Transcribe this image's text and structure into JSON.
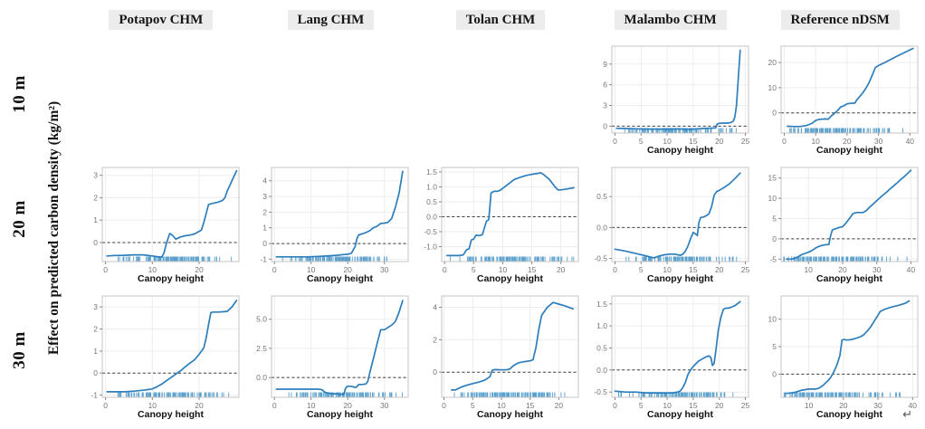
{
  "layout_labels": {
    "col_headers": [
      "Potapov CHM",
      "Lang CHM",
      "Tolan CHM",
      "Malambo CHM",
      "Reference nDSM"
    ],
    "row_headers": [
      "10 m",
      "20 m",
      "30 m"
    ],
    "y_axis_label": "Effect on predicted carbon density (kg/m²)",
    "x_axis_label": "Canopy height",
    "return_mark": "↵"
  },
  "colors": {
    "line": "#2e7ebc",
    "rug": "#3d8fc4",
    "zero_line": "#3f3f3f",
    "panel_border": "#c6c6c6",
    "grid": "#ededed",
    "header_bg": "#ececec",
    "tick_text": "#767676",
    "tick_mark": "#8a8a8a",
    "axis_title": "#111111"
  },
  "chart_data": [
    {
      "type": "line",
      "resolution": "10 m",
      "source": "Malambo CHM",
      "xlabel": "Canopy height",
      "xlim": [
        -0.6,
        25.6
      ],
      "ylim": [
        -1.0,
        11.6
      ],
      "xticks": [
        0,
        5,
        10,
        15,
        20,
        25
      ],
      "yticks": [
        0,
        3,
        6,
        9
      ],
      "xtick_labels": [
        "0",
        "5",
        "10",
        "15",
        "20",
        "25"
      ],
      "ytick_labels": [
        "0",
        "3",
        "6",
        "9"
      ],
      "zero_line": true,
      "x": [
        0.3,
        2,
        4,
        6,
        8,
        10,
        12,
        13,
        14,
        15,
        16,
        17,
        18,
        18.7,
        19.3,
        19.6,
        20,
        21,
        21.7,
        22.3,
        22.7,
        23,
        23.3,
        23.6,
        24
      ],
      "y": [
        -0.32,
        -0.35,
        -0.38,
        -0.42,
        -0.43,
        -0.42,
        -0.4,
        -0.42,
        -0.45,
        -0.42,
        -0.38,
        -0.33,
        -0.3,
        -0.28,
        -0.25,
        0.3,
        0.42,
        0.45,
        0.45,
        0.55,
        0.75,
        1.4,
        3.0,
        6.5,
        11.0
      ],
      "rug": {
        "min": 0.5,
        "max": 24.5,
        "n": 110,
        "seed": 7,
        "skew": 1
      }
    },
    {
      "type": "line",
      "resolution": "10 m",
      "source": "Reference nDSM",
      "xlabel": "Canopy height",
      "xlim": [
        -1,
        42.5
      ],
      "ylim": [
        -8.0,
        26.5
      ],
      "xticks": [
        0,
        10,
        20,
        30,
        40
      ],
      "yticks": [
        0,
        10,
        20
      ],
      "xtick_labels": [
        "0",
        "10",
        "20",
        "30",
        "40"
      ],
      "ytick_labels": [
        "0",
        "10",
        "20"
      ],
      "zero_line": true,
      "x": [
        1,
        3,
        5,
        7,
        8,
        9,
        10,
        11,
        12,
        13,
        14,
        15,
        16,
        17,
        18,
        19,
        20,
        21,
        22.5,
        23,
        24,
        25,
        26,
        27,
        28,
        29,
        30,
        32,
        34,
        36,
        38,
        41
      ],
      "y": [
        -5.3,
        -5.4,
        -5.4,
        -5.0,
        -4.6,
        -4.0,
        -3.0,
        -2.6,
        -2.5,
        -2.4,
        -2.5,
        -1.2,
        -0.2,
        1.0,
        2.4,
        2.8,
        3.6,
        3.8,
        3.9,
        5.0,
        6.5,
        8.0,
        9.8,
        12.0,
        15.0,
        18.0,
        18.8,
        20.0,
        21.3,
        22.6,
        23.8,
        25.6
      ],
      "rug": {
        "min": 0.8,
        "max": 41,
        "n": 130,
        "seed": 11,
        "skew": 1.35
      }
    },
    {
      "type": "line",
      "resolution": "20 m",
      "source": "Potapov CHM",
      "xlabel": "Canopy height",
      "xlim": [
        -0.7,
        28.5
      ],
      "ylim": [
        -0.85,
        3.35
      ],
      "xticks": [
        0,
        10,
        20
      ],
      "yticks": [
        0,
        1,
        2,
        3
      ],
      "xtick_labels": [
        "0",
        "10",
        "20"
      ],
      "ytick_labels": [
        "0",
        "1",
        "2",
        "3"
      ],
      "zero_line": true,
      "x": [
        0.3,
        2,
        4,
        6,
        8,
        10,
        11,
        12,
        12.5,
        13,
        13.7,
        14.3,
        15,
        16,
        17,
        18,
        19,
        20,
        20.5,
        21,
        21.5,
        22,
        23,
        24,
        25,
        25.5,
        26,
        27,
        28
      ],
      "y": [
        -0.6,
        -0.58,
        -0.57,
        -0.55,
        -0.55,
        -0.6,
        -0.63,
        -0.65,
        -0.45,
        -0.05,
        0.4,
        0.32,
        0.15,
        0.25,
        0.3,
        0.33,
        0.38,
        0.5,
        0.55,
        0.9,
        1.3,
        1.7,
        1.75,
        1.8,
        1.88,
        2.0,
        2.3,
        2.75,
        3.2
      ],
      "rug": {
        "min": 0.3,
        "max": 27.6,
        "n": 120,
        "seed": 13,
        "skew": 1
      }
    },
    {
      "type": "line",
      "resolution": "20 m",
      "source": "Lang CHM",
      "xlabel": "Canopy height",
      "xlim": [
        -0.8,
        36.5
      ],
      "ylim": [
        -1.15,
        4.85
      ],
      "xticks": [
        0,
        10,
        20,
        30
      ],
      "yticks": [
        -1,
        0,
        1,
        2,
        3,
        4
      ],
      "xtick_labels": [
        "0",
        "10",
        "20",
        "30"
      ],
      "ytick_labels": [
        "-1",
        "0",
        "1",
        "2",
        "3",
        "4"
      ],
      "zero_line": true,
      "x": [
        0.5,
        3,
        6,
        9,
        12,
        15,
        17,
        19,
        20,
        21,
        21.5,
        22,
        22.5,
        23,
        24,
        25,
        26,
        27,
        28,
        29,
        30,
        31,
        32,
        33,
        34,
        35
      ],
      "y": [
        -0.85,
        -0.85,
        -0.85,
        -0.85,
        -0.82,
        -0.78,
        -0.75,
        -0.7,
        -0.68,
        -0.62,
        -0.4,
        -0.2,
        0.3,
        0.55,
        0.62,
        0.7,
        0.82,
        1.0,
        1.1,
        1.28,
        1.3,
        1.35,
        1.6,
        2.3,
        3.2,
        4.6
      ],
      "rug": {
        "min": 0.5,
        "max": 35.6,
        "n": 115,
        "seed": 17,
        "skew": 1
      }
    },
    {
      "type": "line",
      "resolution": "20 m",
      "source": "Tolan CHM",
      "xlabel": "Canopy height",
      "xlim": [
        -0.5,
        23
      ],
      "ylim": [
        -1.5,
        1.65
      ],
      "xticks": [
        0,
        5,
        10,
        15,
        20
      ],
      "yticks": [
        -1.0,
        -0.5,
        0.0,
        0.5,
        1.0,
        1.5
      ],
      "xtick_labels": [
        "0",
        "5",
        "10",
        "15",
        "20"
      ],
      "ytick_labels": [
        "-1.0",
        "-0.5",
        "0.0",
        "0.5",
        "1.0",
        "1.5"
      ],
      "zero_line": true,
      "x": [
        0.4,
        1.5,
        2.5,
        3.2,
        3.8,
        4.2,
        4.6,
        5.0,
        5.4,
        6.0,
        6.5,
        6.8,
        7.2,
        7.6,
        8.0,
        8.5,
        9.0,
        9.5,
        10,
        11,
        12,
        13,
        14,
        15,
        16,
        16.5,
        17,
        18,
        19,
        19.5,
        20,
        21,
        22.2
      ],
      "y": [
        -1.3,
        -1.3,
        -1.3,
        -1.28,
        -1.1,
        -1.08,
        -0.78,
        -0.75,
        -0.62,
        -0.63,
        -0.6,
        -0.4,
        -0.15,
        -0.1,
        0.8,
        0.85,
        0.85,
        0.88,
        0.95,
        1.1,
        1.25,
        1.32,
        1.38,
        1.42,
        1.45,
        1.47,
        1.42,
        1.25,
        1.0,
        0.9,
        0.9,
        0.93,
        0.97
      ],
      "rug": {
        "min": 0.3,
        "max": 22.4,
        "n": 120,
        "seed": 19,
        "skew": 1
      }
    },
    {
      "type": "line",
      "resolution": "20 m",
      "source": "Malambo CHM",
      "xlabel": "Canopy height",
      "xlim": [
        -0.6,
        25.6
      ],
      "ylim": [
        -0.55,
        0.97
      ],
      "xticks": [
        0,
        5,
        10,
        15,
        20,
        25
      ],
      "yticks": [
        -0.5,
        0.0,
        0.5
      ],
      "xtick_labels": [
        "0",
        "5",
        "10",
        "15",
        "20",
        "25"
      ],
      "ytick_labels": [
        "-0.5",
        "0.0",
        "0.5"
      ],
      "zero_line": true,
      "x": [
        0,
        2,
        4,
        6,
        7.5,
        8.5,
        9.5,
        10.5,
        11.5,
        12.5,
        13,
        13.5,
        14,
        14.5,
        15,
        15.4,
        15.8,
        16.1,
        16.4,
        17,
        17.5,
        18,
        18.5,
        19,
        19.5,
        20,
        21,
        22,
        23,
        24
      ],
      "y": [
        -0.35,
        -0.38,
        -0.42,
        -0.46,
        -0.49,
        -0.46,
        -0.44,
        -0.43,
        -0.43,
        -0.45,
        -0.43,
        -0.38,
        -0.3,
        -0.18,
        -0.08,
        -0.1,
        -0.13,
        0.08,
        0.16,
        0.17,
        0.19,
        0.22,
        0.33,
        0.52,
        0.58,
        0.6,
        0.65,
        0.71,
        0.79,
        0.88
      ],
      "rug": {
        "min": 0.3,
        "max": 24.6,
        "n": 115,
        "seed": 23,
        "skew": 1
      }
    },
    {
      "type": "line",
      "resolution": "20 m",
      "source": "Reference nDSM",
      "xlabel": "Canopy height",
      "xlim": [
        2,
        42
      ],
      "ylim": [
        -5.6,
        17.6
      ],
      "xticks": [
        10,
        20,
        30,
        40
      ],
      "yticks": [
        -5,
        0,
        5,
        10,
        15
      ],
      "xtick_labels": [
        "10",
        "20",
        "30",
        "40"
      ],
      "ytick_labels": [
        "-5",
        "0",
        "5",
        "10",
        "15"
      ],
      "zero_line": true,
      "x": [
        3.5,
        5,
        6,
        7,
        8,
        9,
        10,
        11,
        12,
        13,
        14,
        15,
        16,
        16.4,
        17,
        18,
        19,
        20,
        21,
        22,
        23,
        24,
        25,
        26,
        27,
        28,
        29,
        30,
        31,
        32,
        33,
        34,
        35,
        36,
        37,
        38,
        39,
        40
      ],
      "y": [
        -5.0,
        -5.0,
        -4.8,
        -4.4,
        -3.9,
        -3.6,
        -3.3,
        -2.9,
        -2.3,
        -1.9,
        -1.6,
        -1.45,
        -1.4,
        0.5,
        2.2,
        2.5,
        2.8,
        3.0,
        3.9,
        5.0,
        6.2,
        6.5,
        6.5,
        6.5,
        7.0,
        7.9,
        8.6,
        9.4,
        10.2,
        10.9,
        11.6,
        12.4,
        13.1,
        13.8,
        14.6,
        15.3,
        16.1,
        16.9
      ],
      "rug": {
        "min": 2.5,
        "max": 40,
        "n": 125,
        "seed": 29,
        "skew": 1.35
      }
    },
    {
      "type": "line",
      "resolution": "30 m",
      "source": "Potapov CHM",
      "xlabel": "Canopy height",
      "xlim": [
        -0.7,
        28.5
      ],
      "ylim": [
        -1.1,
        3.5
      ],
      "xticks": [
        0,
        10,
        20
      ],
      "yticks": [
        -1,
        0,
        1,
        2,
        3
      ],
      "xtick_labels": [
        "0",
        "10",
        "20"
      ],
      "ytick_labels": [
        "-1",
        "0",
        "1",
        "2",
        "3"
      ],
      "zero_line": true,
      "x": [
        0.3,
        2,
        4,
        6,
        8,
        9,
        10,
        11,
        12,
        13,
        14,
        15,
        15.5,
        16,
        17,
        18,
        19,
        20,
        20.5,
        21,
        21.5,
        22,
        22.5,
        23,
        24,
        25,
        26,
        27,
        28
      ],
      "y": [
        -0.85,
        -0.85,
        -0.85,
        -0.82,
        -0.78,
        -0.75,
        -0.72,
        -0.62,
        -0.5,
        -0.35,
        -0.2,
        -0.05,
        0.03,
        0.1,
        0.28,
        0.45,
        0.6,
        0.85,
        1.0,
        1.15,
        1.6,
        2.2,
        2.75,
        2.77,
        2.77,
        2.78,
        2.8,
        3.0,
        3.3
      ],
      "rug": {
        "min": 0.3,
        "max": 27.6,
        "n": 120,
        "seed": 31,
        "skew": 1
      }
    },
    {
      "type": "line",
      "resolution": "30 m",
      "source": "Lang CHM",
      "xlabel": "Canopy height",
      "xlim": [
        -0.8,
        36.5
      ],
      "ylim": [
        -1.7,
        7.0
      ],
      "xticks": [
        0,
        10,
        20,
        30
      ],
      "yticks": [
        0,
        2.5,
        5
      ],
      "xtick_labels": [
        "0",
        "10",
        "20",
        "30"
      ],
      "ytick_labels": [
        "0.0",
        "2.5",
        "5.0"
      ],
      "zero_line": true,
      "x": [
        0.5,
        3,
        6,
        9,
        12,
        13,
        13.5,
        14,
        15,
        16,
        17,
        18,
        19,
        19.3,
        19.7,
        20,
        21,
        22,
        22.5,
        23,
        24,
        25,
        25.5,
        26,
        27,
        28,
        29,
        30,
        31,
        32,
        33,
        34,
        35
      ],
      "y": [
        -1.0,
        -1.0,
        -1.0,
        -1.0,
        -1.0,
        -1.05,
        -1.2,
        -1.3,
        -1.35,
        -1.4,
        -1.4,
        -1.45,
        -1.42,
        -1.0,
        -0.8,
        -0.75,
        -0.75,
        -0.85,
        -0.8,
        -0.6,
        -0.6,
        -0.55,
        -0.3,
        0.4,
        1.6,
        2.9,
        4.1,
        4.1,
        4.3,
        4.5,
        4.8,
        5.6,
        6.6
      ],
      "rug": {
        "min": 0.5,
        "max": 35.6,
        "n": 115,
        "seed": 37,
        "skew": 1
      }
    },
    {
      "type": "line",
      "resolution": "30 m",
      "source": "Tolan CHM",
      "xlabel": "Canopy height",
      "xlim": [
        -0.4,
        23.4
      ],
      "ylim": [
        -1.55,
        4.7
      ],
      "xticks": [
        0,
        5,
        10,
        15,
        20
      ],
      "yticks": [
        0,
        2,
        4
      ],
      "xtick_labels": [
        "0",
        "5",
        "10",
        "15",
        "20"
      ],
      "ytick_labels": [
        "0",
        "2",
        "4"
      ],
      "zero_line": true,
      "x": [
        1.3,
        2,
        3,
        4,
        5,
        6,
        6.5,
        7,
        7.5,
        8,
        8.4,
        8.8,
        9.5,
        10,
        11,
        11.5,
        12,
        13,
        14,
        15,
        15.5,
        16,
        16.5,
        17,
        18,
        19,
        20,
        21,
        22.5
      ],
      "y": [
        -1.1,
        -1.1,
        -0.92,
        -0.8,
        -0.7,
        -0.62,
        -0.56,
        -0.5,
        -0.4,
        -0.28,
        0.12,
        0.16,
        0.15,
        0.14,
        0.15,
        0.2,
        0.38,
        0.58,
        0.65,
        0.7,
        0.76,
        1.5,
        2.6,
        3.5,
        4.0,
        4.3,
        4.2,
        4.1,
        3.9
      ],
      "rug": {
        "min": 0.3,
        "max": 22.6,
        "n": 120,
        "seed": 41,
        "skew": 1
      }
    },
    {
      "type": "line",
      "resolution": "30 m",
      "source": "Malambo CHM",
      "xlabel": "Canopy height",
      "xlim": [
        -0.6,
        25.6
      ],
      "ylim": [
        -0.62,
        1.68
      ],
      "xticks": [
        0,
        5,
        10,
        15,
        20,
        25
      ],
      "yticks": [
        -0.5,
        0.0,
        0.5,
        1.0,
        1.5
      ],
      "xtick_labels": [
        "0",
        "5",
        "10",
        "15",
        "20",
        "25"
      ],
      "ytick_labels": [
        "-0.5",
        "0.0",
        "0.5",
        "1.0",
        "1.5"
      ],
      "zero_line": true,
      "x": [
        0,
        2,
        4,
        6,
        8,
        10,
        11,
        12,
        12.5,
        13,
        13.5,
        14,
        14.5,
        15,
        16,
        17,
        17.5,
        18,
        18.4,
        18.7,
        19,
        19.4,
        19.8,
        20.3,
        20.8,
        21.2,
        22,
        23,
        24
      ],
      "y": [
        -0.48,
        -0.5,
        -0.5,
        -0.52,
        -0.52,
        -0.52,
        -0.52,
        -0.5,
        -0.48,
        -0.4,
        -0.28,
        -0.1,
        0.0,
        0.08,
        0.2,
        0.27,
        0.3,
        0.32,
        0.28,
        0.1,
        0.15,
        0.5,
        0.9,
        1.2,
        1.38,
        1.4,
        1.41,
        1.46,
        1.55
      ],
      "rug": {
        "min": 0.3,
        "max": 24.6,
        "n": 115,
        "seed": 43,
        "skew": 1
      }
    },
    {
      "type": "line",
      "resolution": "30 m",
      "source": "Reference nDSM",
      "xlabel": "Canopy height",
      "xlim": [
        2,
        41.5
      ],
      "ylim": [
        -4.2,
        14.2
      ],
      "xticks": [
        10,
        20,
        30,
        40
      ],
      "yticks": [
        0,
        5,
        10
      ],
      "xtick_labels": [
        "10",
        "20",
        "30",
        "40"
      ],
      "ytick_labels": [
        "0",
        "5",
        "10"
      ],
      "zero_line": true,
      "x": [
        3.5,
        5,
        6,
        7,
        8,
        9,
        10,
        11,
        12,
        13,
        14,
        15,
        16,
        17,
        17.5,
        18,
        18.5,
        19,
        19.6,
        20.2,
        21,
        22,
        23,
        24,
        25,
        26,
        27,
        28,
        29,
        30,
        30.7,
        32,
        34,
        36,
        38,
        39
      ],
      "y": [
        -3.5,
        -3.4,
        -3.3,
        -3.1,
        -2.9,
        -2.8,
        -2.7,
        -2.7,
        -2.7,
        -2.5,
        -2.1,
        -1.5,
        -0.9,
        0.1,
        0.8,
        1.5,
        2.4,
        3.4,
        6.2,
        6.3,
        6.2,
        6.25,
        6.4,
        6.6,
        6.8,
        7.2,
        7.9,
        8.7,
        9.7,
        10.7,
        11.4,
        11.8,
        12.2,
        12.5,
        12.9,
        13.3
      ],
      "rug": {
        "min": 2.5,
        "max": 39.5,
        "n": 125,
        "seed": 47,
        "skew": 1.35
      }
    }
  ]
}
